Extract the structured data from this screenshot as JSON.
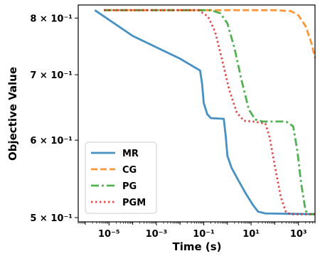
{
  "chart_data": {
    "type": "line",
    "title": "",
    "xlabel": "Time (s)",
    "ylabel": "Objective Value",
    "x_scale": "log",
    "y_scale": "log",
    "xlim": [
      5e-07,
      5000
    ],
    "ylim": [
      0.495,
      0.825
    ],
    "x_ticks": [
      {
        "value": 1e-05,
        "label": "10⁻⁵"
      },
      {
        "value": 0.001,
        "label": "10⁻³"
      },
      {
        "value": 0.1,
        "label": "10⁻¹"
      },
      {
        "value": 10,
        "label": "10¹"
      },
      {
        "value": 1000,
        "label": "10³"
      }
    ],
    "y_ticks": [
      {
        "value": 0.5,
        "label": "5 × 10⁻¹"
      },
      {
        "value": 0.6,
        "label": "6 × 10⁻¹"
      },
      {
        "value": 0.7,
        "label": "7 × 10⁻¹"
      },
      {
        "value": 0.8,
        "label": "8 × 10⁻¹"
      }
    ],
    "grid": false,
    "legend_position": "lower-left",
    "series": [
      {
        "name": "MR",
        "color": "#1f77b4",
        "dash": "solid",
        "points": [
          [
            2.5e-06,
            0.815
          ],
          [
            0.0001,
            0.767
          ],
          [
            0.01,
            0.727
          ],
          [
            0.07,
            0.707
          ],
          [
            0.085,
            0.685
          ],
          [
            0.1,
            0.655
          ],
          [
            0.14,
            0.638
          ],
          [
            0.2,
            0.632
          ],
          [
            0.7,
            0.631
          ],
          [
            0.85,
            0.605
          ],
          [
            1,
            0.578
          ],
          [
            1.5,
            0.562
          ],
          [
            3,
            0.545
          ],
          [
            6,
            0.529
          ],
          [
            12,
            0.515
          ],
          [
            20,
            0.507
          ],
          [
            40,
            0.505
          ],
          [
            5000,
            0.504
          ]
        ]
      },
      {
        "name": "CG",
        "color": "#ff7f0e",
        "dash": "dashed",
        "points": [
          [
            6.1e-06,
            0.815
          ],
          [
            100,
            0.815
          ],
          [
            500,
            0.813
          ],
          [
            1000,
            0.805
          ],
          [
            2000,
            0.785
          ],
          [
            3500,
            0.755
          ],
          [
            5000,
            0.728
          ]
        ]
      },
      {
        "name": "PG",
        "color": "#2ca02c",
        "dash": "dashdot",
        "points": [
          [
            6.1e-06,
            0.815
          ],
          [
            0.2,
            0.815
          ],
          [
            0.5,
            0.809
          ],
          [
            1,
            0.79
          ],
          [
            2,
            0.745
          ],
          [
            4,
            0.69
          ],
          [
            8,
            0.645
          ],
          [
            15,
            0.63
          ],
          [
            30,
            0.627
          ],
          [
            300,
            0.627
          ],
          [
            600,
            0.62
          ],
          [
            900,
            0.585
          ],
          [
            1300,
            0.542
          ],
          [
            2000,
            0.508
          ],
          [
            3000,
            0.504
          ],
          [
            5000,
            0.504
          ]
        ]
      },
      {
        "name": "PGM",
        "color": "#d62728",
        "dash": "dotted",
        "points": [
          [
            6.1e-06,
            0.815
          ],
          [
            0.06,
            0.815
          ],
          [
            0.15,
            0.803
          ],
          [
            0.3,
            0.775
          ],
          [
            0.6,
            0.725
          ],
          [
            1.2,
            0.675
          ],
          [
            2.5,
            0.64
          ],
          [
            5,
            0.628
          ],
          [
            12,
            0.627
          ],
          [
            40,
            0.624
          ],
          [
            60,
            0.605
          ],
          [
            100,
            0.565
          ],
          [
            180,
            0.525
          ],
          [
            300,
            0.506
          ],
          [
            500,
            0.504
          ],
          [
            5000,
            0.504
          ]
        ]
      }
    ]
  }
}
